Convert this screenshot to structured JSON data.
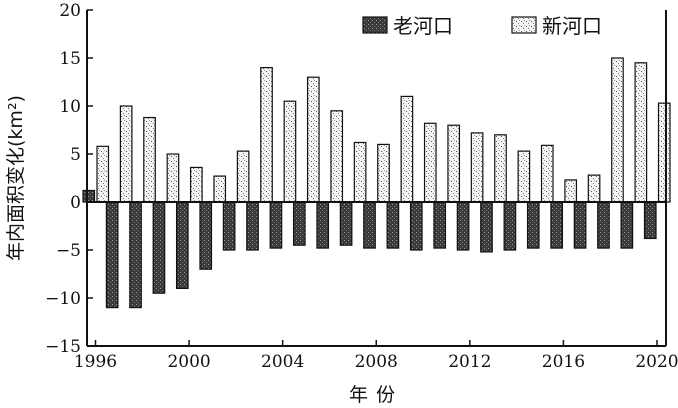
{
  "chart_data": {
    "type": "bar",
    "xlabel": "年份",
    "ylabel": "年内面积变化(km²)",
    "ylim": [
      -15,
      20
    ],
    "yticks": [
      -15,
      -10,
      -5,
      0,
      5,
      10,
      15,
      20
    ],
    "xticks": [
      "1996",
      "2000",
      "2004",
      "2008",
      "2012",
      "2016",
      "2020"
    ],
    "legend_position": "top-right",
    "x": [
      1996,
      1997,
      1998,
      1999,
      2000,
      2001,
      2002,
      2003,
      2004,
      2005,
      2006,
      2007,
      2008,
      2009,
      2010,
      2011,
      2012,
      2013,
      2014,
      2015,
      2016,
      2017,
      2018,
      2019,
      2020
    ],
    "series": [
      {
        "name": "老河口",
        "values": [
          1.2,
          -11.0,
          -11.0,
          -9.5,
          -9.0,
          -7.0,
          -5.0,
          -5.0,
          -4.8,
          -4.5,
          -4.8,
          -4.5,
          -4.8,
          -4.8,
          -5.0,
          -4.8,
          -5.0,
          -5.2,
          -5.0,
          -4.8,
          -4.8,
          -4.8,
          -4.8,
          -4.8,
          -3.8
        ]
      },
      {
        "name": "新河口",
        "values": [
          5.8,
          10.0,
          8.8,
          5.0,
          3.6,
          2.7,
          5.3,
          14.0,
          10.5,
          13.0,
          9.5,
          6.2,
          6.0,
          11.0,
          8.2,
          8.0,
          7.2,
          7.0,
          5.3,
          5.9,
          2.3,
          2.8,
          15.0,
          14.5,
          10.3
        ]
      }
    ]
  }
}
